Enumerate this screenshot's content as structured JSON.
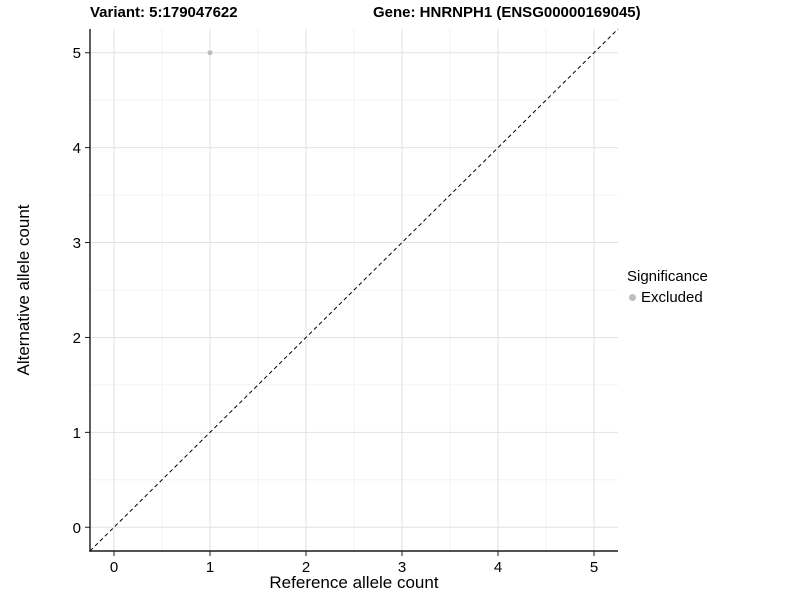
{
  "chart_data": {
    "type": "scatter",
    "title_left": "Variant: 5:179047622",
    "title_right": "Gene: HNRNPH1 (ENSG00000169045)",
    "xlabel": "Reference allele count",
    "ylabel": "Alternative allele count",
    "xlim": [
      -0.25,
      5.25
    ],
    "ylim": [
      -0.25,
      5.25
    ],
    "x_ticks": [
      0,
      1,
      2,
      3,
      4,
      5
    ],
    "y_ticks": [
      0,
      1,
      2,
      3,
      4,
      5
    ],
    "x_minor_ticks": [
      0.5,
      1.5,
      2.5,
      3.5,
      4.5
    ],
    "y_minor_ticks": [
      0.5,
      1.5,
      2.5,
      3.5,
      4.5
    ],
    "grid": true,
    "series": [
      {
        "name": "Excluded",
        "color": "#bebebe",
        "points": [
          {
            "x": 1,
            "y": 5
          }
        ]
      }
    ],
    "reference_line": {
      "kind": "identity y=x",
      "style": "dashed",
      "color": "#000000",
      "from": [
        -0.25,
        -0.25
      ],
      "to": [
        5.25,
        5.25
      ]
    },
    "legend": {
      "title": "Significance",
      "position": "right",
      "entries": [
        "Excluded"
      ]
    },
    "style": {
      "background": "#ffffff",
      "grid_major_color": "#e2e2e2",
      "grid_minor_color": "#f0f0f0",
      "axis_color": "#1a1a1a",
      "point_color": "#bebebe"
    }
  }
}
